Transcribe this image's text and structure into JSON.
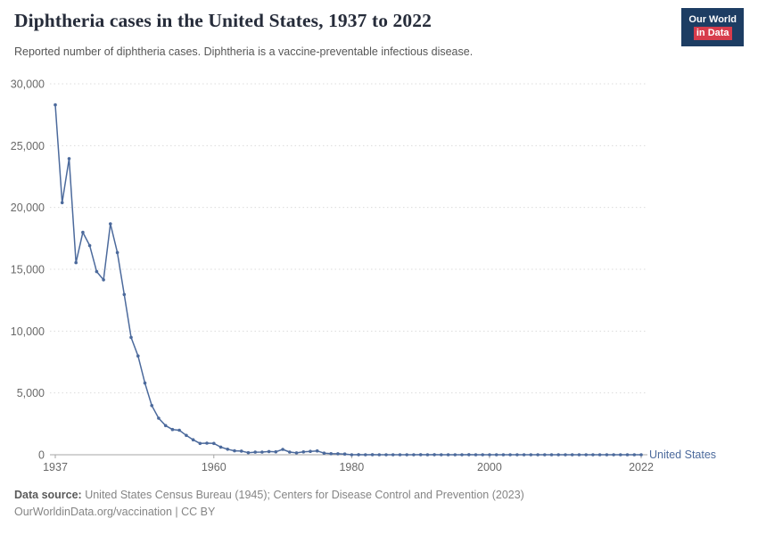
{
  "header": {
    "title": "Diphtheria cases in the United States, 1937 to 2022",
    "subtitle": "Reported number of diphtheria cases. Diphtheria is a vaccine-preventable infectious disease.",
    "logo": {
      "line1": "Our World",
      "line2": "in Data"
    }
  },
  "colors": {
    "series": "#4c6a9c",
    "logo_bg": "#1d3d63",
    "logo_red": "#d73c4c",
    "gridline": "#dcdcdc",
    "axis": "#a6a6a6",
    "tick_label": "#696969"
  },
  "chart_data": {
    "type": "line",
    "title": "Diphtheria cases in the United States, 1937 to 2022",
    "xlabel": "",
    "ylabel": "",
    "xlim": [
      1937,
      2022
    ],
    "ylim": [
      0,
      30000
    ],
    "grid": "horizontal-dotted",
    "legend_position": "end-of-line",
    "x_ticks": [
      1937,
      1960,
      1980,
      2000,
      2022
    ],
    "x_tick_labels": [
      "1937",
      "1960",
      "1980",
      "2000",
      "2022"
    ],
    "y_ticks": [
      0,
      5000,
      10000,
      15000,
      20000,
      25000,
      30000
    ],
    "y_tick_labels": [
      "0",
      "5,000",
      "10,000",
      "15,000",
      "20,000",
      "25,000",
      "30,000"
    ],
    "series": [
      {
        "name": "United States",
        "color": "#4c6a9c",
        "x": [
          1937,
          1938,
          1939,
          1940,
          1941,
          1942,
          1943,
          1944,
          1945,
          1946,
          1947,
          1948,
          1949,
          1950,
          1951,
          1952,
          1953,
          1954,
          1955,
          1956,
          1957,
          1958,
          1959,
          1960,
          1961,
          1962,
          1963,
          1964,
          1965,
          1966,
          1967,
          1968,
          1969,
          1970,
          1971,
          1972,
          1973,
          1974,
          1975,
          1976,
          1977,
          1978,
          1979,
          1980,
          1981,
          1982,
          1983,
          1984,
          1985,
          1986,
          1987,
          1988,
          1989,
          1990,
          1991,
          1992,
          1993,
          1994,
          1995,
          1996,
          1997,
          1998,
          1999,
          2000,
          2001,
          2002,
          2003,
          2004,
          2005,
          2006,
          2007,
          2008,
          2009,
          2010,
          2011,
          2012,
          2013,
          2014,
          2015,
          2016,
          2017,
          2018,
          2019,
          2020,
          2021,
          2022
        ],
        "values": [
          28295,
          20387,
          23948,
          15536,
          17986,
          16919,
          14811,
          14150,
          18675,
          16354,
          12962,
          9493,
          7989,
          5796,
          3983,
          2960,
          2355,
          2041,
          1984,
          1568,
          1211,
          918,
          934,
          918,
          617,
          444,
          314,
          293,
          164,
          209,
          219,
          260,
          241,
          435,
          215,
          152,
          228,
          272,
          307,
          128,
          84,
          76,
          59,
          3,
          5,
          2,
          5,
          1,
          3,
          0,
          3,
          2,
          3,
          4,
          2,
          4,
          0,
          2,
          0,
          2,
          4,
          1,
          1,
          1,
          2,
          1,
          1,
          0,
          0,
          0,
          0,
          0,
          0,
          0,
          0,
          1,
          0,
          1,
          0,
          0,
          0,
          1,
          2,
          1,
          0,
          2
        ]
      }
    ]
  },
  "footer": {
    "datasource_label": "Data source:",
    "datasource_text": " United States Census Bureau (1945); Centers for Disease Control and Prevention (2023)",
    "link_text": "OurWorldinData.org/vaccination | CC BY"
  }
}
